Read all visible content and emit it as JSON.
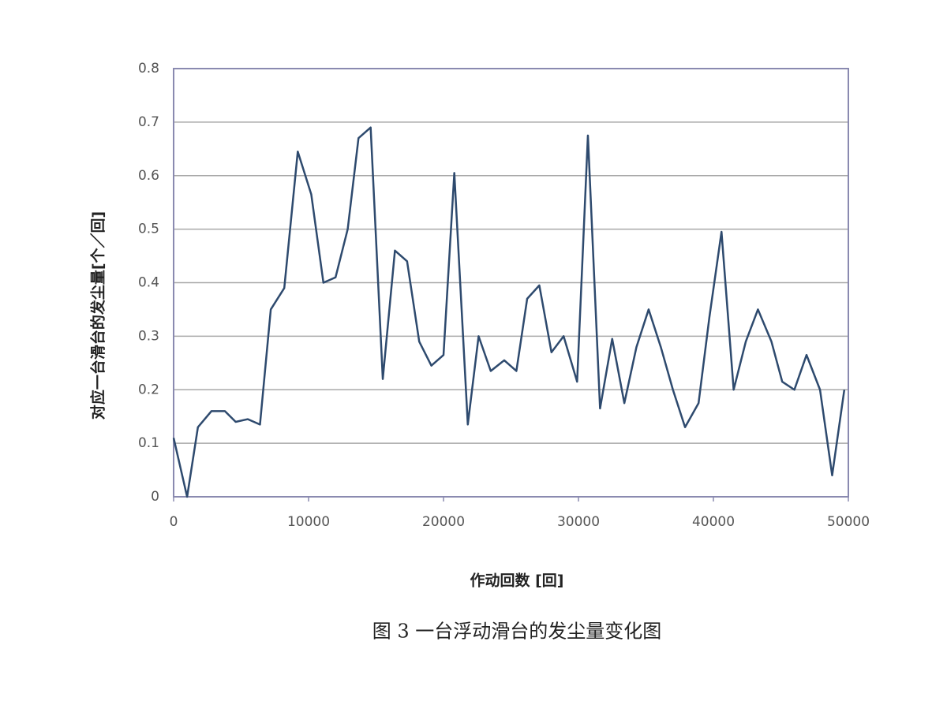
{
  "chart_data": {
    "type": "line",
    "y_label": "对应一台滑台的发尘量[个／回]",
    "x_label": "作动回数 [回]",
    "caption": "图 3  一台浮动滑台的发尘量变化图",
    "xlim": [
      0,
      50000
    ],
    "xticks": [
      0,
      10000,
      20000,
      30000,
      40000,
      50000
    ],
    "ylim": [
      0,
      0.8
    ],
    "yticks": [
      0,
      0.1,
      0.2,
      0.3,
      0.4,
      0.5,
      0.6,
      0.7,
      0.8
    ],
    "grid": true,
    "color": "#2e4a6e",
    "x": [
      0,
      1000,
      1800,
      2800,
      3800,
      4600,
      5500,
      6400,
      7200,
      8200,
      9200,
      10200,
      11100,
      12000,
      12900,
      13700,
      14600,
      15500,
      16400,
      17300,
      18200,
      19100,
      20000,
      20800,
      21800,
      22600,
      23500,
      24500,
      25400,
      26200,
      27100,
      28000,
      28900,
      29900,
      30700,
      31600,
      32500,
      33400,
      34300,
      35200,
      36100,
      37000,
      37900,
      38900,
      39700,
      40600,
      41500,
      42400,
      43300,
      44300,
      45100,
      46000,
      46900,
      47900,
      48800,
      49700
    ],
    "values": [
      0.11,
      0,
      0.13,
      0.16,
      0.16,
      0.14,
      0.145,
      0.135,
      0.35,
      0.39,
      0.645,
      0.565,
      0.4,
      0.41,
      0.5,
      0.67,
      0.69,
      0.22,
      0.46,
      0.44,
      0.29,
      0.245,
      0.265,
      0.605,
      0.135,
      0.3,
      0.235,
      0.255,
      0.235,
      0.37,
      0.395,
      0.27,
      0.3,
      0.215,
      0.675,
      0.165,
      0.295,
      0.175,
      0.28,
      0.35,
      0.28,
      0.2,
      0.13,
      0.175,
      0.335,
      0.495,
      0.2,
      0.29,
      0.35,
      0.29,
      0.215,
      0.2,
      0.265,
      0.2,
      0.04,
      0.2
    ]
  }
}
